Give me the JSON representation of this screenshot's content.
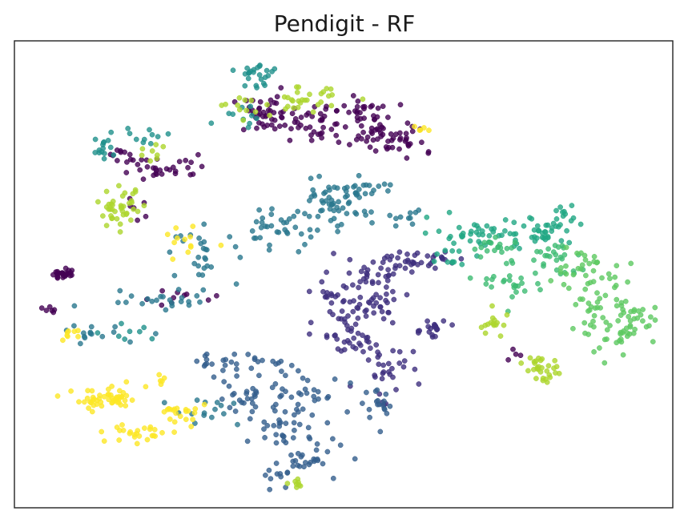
{
  "chart_data": {
    "type": "scatter",
    "title": "Pendigit - RF",
    "xlabel": "",
    "ylabel": "",
    "xlim": [
      0,
      100
    ],
    "ylim": [
      0,
      100
    ],
    "show_ticks": false,
    "grid": false,
    "legend": "none",
    "marker_alpha": 0.8,
    "colormap": "viridis",
    "series": [
      {
        "name": "",
        "color": "#440154",
        "clusters": [
          {
            "cx": 38,
            "cy": 84,
            "sx": 2.5,
            "sy": 2.0,
            "n": 40
          },
          {
            "cx": 46,
            "cy": 82,
            "sx": 3.0,
            "sy": 2.0,
            "n": 40
          },
          {
            "cx": 52,
            "cy": 84,
            "sx": 2.5,
            "sy": 2.0,
            "n": 30
          },
          {
            "cx": 57,
            "cy": 80,
            "sx": 2.5,
            "sy": 2.0,
            "n": 35
          },
          {
            "cx": 60,
            "cy": 78,
            "sx": 2.0,
            "sy": 1.5,
            "n": 15
          },
          {
            "cx": 23,
            "cy": 73,
            "sx": 3.5,
            "sy": 1.3,
            "n": 30
          },
          {
            "cx": 17,
            "cy": 76,
            "sx": 1.5,
            "sy": 1.0,
            "n": 10
          },
          {
            "cx": 7.3,
            "cy": 50,
            "sx": 0.7,
            "sy": 0.7,
            "n": 25
          },
          {
            "cx": 5,
            "cy": 43,
            "sx": 0.6,
            "sy": 0.6,
            "n": 6
          },
          {
            "cx": 18,
            "cy": 64,
            "sx": 1.0,
            "sy": 2.0,
            "n": 6
          },
          {
            "cx": 75,
            "cy": 33,
            "sx": 0.8,
            "sy": 0.8,
            "n": 4
          },
          {
            "cx": 26,
            "cy": 45,
            "sx": 3.0,
            "sy": 1.0,
            "n": 10
          }
        ]
      },
      {
        "name": "",
        "color": "#3e2f7e",
        "clusters": [
          {
            "cx": 58,
            "cy": 52,
            "sx": 3.5,
            "sy": 1.5,
            "n": 40
          },
          {
            "cx": 54,
            "cy": 45,
            "sx": 2.5,
            "sy": 3.0,
            "n": 50
          },
          {
            "cx": 51,
            "cy": 37,
            "sx": 2.5,
            "sy": 3.0,
            "n": 40
          },
          {
            "cx": 56,
            "cy": 30,
            "sx": 2.0,
            "sy": 3.0,
            "n": 30
          },
          {
            "cx": 63,
            "cy": 38,
            "sx": 1.2,
            "sy": 1.2,
            "n": 20
          },
          {
            "cx": 48,
            "cy": 46,
            "sx": 1.5,
            "sy": 1.5,
            "n": 15
          },
          {
            "cx": 64,
            "cy": 53,
            "sx": 1.5,
            "sy": 1.0,
            "n": 10
          }
        ]
      },
      {
        "name": "",
        "color": "#355f8d",
        "clusters": [
          {
            "cx": 43,
            "cy": 10,
            "sx": 3.5,
            "sy": 2.5,
            "n": 40
          },
          {
            "cx": 41,
            "cy": 18,
            "sx": 2.5,
            "sy": 3.0,
            "n": 35
          },
          {
            "cx": 35,
            "cy": 31,
            "sx": 4.0,
            "sy": 1.0,
            "n": 30
          },
          {
            "cx": 36,
            "cy": 24,
            "sx": 3.0,
            "sy": 2.0,
            "n": 25
          },
          {
            "cx": 45,
            "cy": 25,
            "sx": 2.5,
            "sy": 2.0,
            "n": 20
          },
          {
            "cx": 54,
            "cy": 21,
            "sx": 2.0,
            "sy": 2.0,
            "n": 20
          }
        ]
      },
      {
        "name": "",
        "color": "#2a788e",
        "clusters": [
          {
            "cx": 48,
            "cy": 64,
            "sx": 3.0,
            "sy": 2.5,
            "n": 45
          },
          {
            "cx": 40,
            "cy": 60,
            "sx": 3.0,
            "sy": 2.0,
            "n": 35
          },
          {
            "cx": 52,
            "cy": 68,
            "sx": 3.0,
            "sy": 1.5,
            "n": 25
          },
          {
            "cx": 29,
            "cy": 54,
            "sx": 2.5,
            "sy": 3.0,
            "n": 30
          },
          {
            "cx": 59,
            "cy": 62,
            "sx": 1.5,
            "sy": 1.0,
            "n": 10
          },
          {
            "cx": 30,
            "cy": 21,
            "sx": 3.0,
            "sy": 2.0,
            "n": 15
          },
          {
            "cx": 13,
            "cy": 37,
            "sx": 4.0,
            "sy": 1.0,
            "n": 15
          },
          {
            "cx": 21,
            "cy": 45,
            "sx": 5.0,
            "sy": 1.0,
            "n": 20
          }
        ]
      },
      {
        "name": "",
        "color": "#21918c",
        "clusters": [
          {
            "cx": 37,
            "cy": 92,
            "sx": 2.0,
            "sy": 2.0,
            "n": 25
          },
          {
            "cx": 14,
            "cy": 77,
            "sx": 1.0,
            "sy": 2.0,
            "n": 15
          },
          {
            "cx": 20,
            "cy": 80,
            "sx": 2.0,
            "sy": 1.0,
            "n": 10
          },
          {
            "cx": 35,
            "cy": 84,
            "sx": 2.0,
            "sy": 1.5,
            "n": 10
          },
          {
            "cx": 17,
            "cy": 38,
            "sx": 2.0,
            "sy": 1.0,
            "n": 8
          }
        ]
      },
      {
        "name": "",
        "color": "#22a884",
        "clusters": [
          {
            "cx": 70,
            "cy": 59,
            "sx": 3.5,
            "sy": 1.5,
            "n": 40
          },
          {
            "cx": 80,
            "cy": 59,
            "sx": 2.5,
            "sy": 2.0,
            "n": 35
          },
          {
            "cx": 67,
            "cy": 54,
            "sx": 1.5,
            "sy": 1.5,
            "n": 10
          },
          {
            "cx": 84,
            "cy": 62,
            "sx": 2.0,
            "sy": 1.0,
            "n": 12
          }
        ]
      },
      {
        "name": "",
        "color": "#3fbc73",
        "clusters": [
          {
            "cx": 76,
            "cy": 49,
            "sx": 2.5,
            "sy": 3.0,
            "n": 30
          },
          {
            "cx": 82,
            "cy": 53,
            "sx": 2.0,
            "sy": 2.0,
            "n": 25
          },
          {
            "cx": 73,
            "cy": 56,
            "sx": 2.0,
            "sy": 1.5,
            "n": 15
          }
        ]
      },
      {
        "name": "",
        "color": "#5ec962",
        "clusters": [
          {
            "cx": 92,
            "cy": 38,
            "sx": 3.0,
            "sy": 2.5,
            "n": 45
          },
          {
            "cx": 89,
            "cy": 46,
            "sx": 2.5,
            "sy": 3.0,
            "n": 35
          },
          {
            "cx": 86,
            "cy": 52,
            "sx": 2.0,
            "sy": 2.0,
            "n": 20
          },
          {
            "cx": 95,
            "cy": 42,
            "sx": 1.5,
            "sy": 1.5,
            "n": 10
          }
        ]
      },
      {
        "name": "",
        "color": "#add62d",
        "clusters": [
          {
            "cx": 16,
            "cy": 64,
            "sx": 1.8,
            "sy": 2.0,
            "n": 40
          },
          {
            "cx": 44,
            "cy": 87,
            "sx": 2.5,
            "sy": 1.5,
            "n": 30
          },
          {
            "cx": 80,
            "cy": 30,
            "sx": 1.2,
            "sy": 1.5,
            "n": 30
          },
          {
            "cx": 73,
            "cy": 39,
            "sx": 1.5,
            "sy": 1.5,
            "n": 15
          },
          {
            "cx": 34,
            "cy": 86,
            "sx": 2.0,
            "sy": 1.5,
            "n": 10
          },
          {
            "cx": 21,
            "cy": 76,
            "sx": 1.5,
            "sy": 1.0,
            "n": 8
          },
          {
            "cx": 43,
            "cy": 5,
            "sx": 0.6,
            "sy": 0.5,
            "n": 8
          }
        ]
      },
      {
        "name": "",
        "color": "#fde725",
        "clusters": [
          {
            "cx": 14,
            "cy": 23,
            "sx": 2.5,
            "sy": 1.2,
            "n": 50
          },
          {
            "cx": 19,
            "cy": 16,
            "sx": 2.5,
            "sy": 1.0,
            "n": 25
          },
          {
            "cx": 25,
            "cy": 20,
            "sx": 2.0,
            "sy": 1.5,
            "n": 20
          },
          {
            "cx": 26,
            "cy": 56,
            "sx": 1.5,
            "sy": 2.5,
            "n": 12
          },
          {
            "cx": 9,
            "cy": 37,
            "sx": 1.0,
            "sy": 0.6,
            "n": 8
          },
          {
            "cx": 21,
            "cy": 27,
            "sx": 1.0,
            "sy": 1.0,
            "n": 6
          },
          {
            "cx": 61,
            "cy": 81,
            "sx": 1.0,
            "sy": 0.6,
            "n": 5
          }
        ]
      }
    ]
  }
}
